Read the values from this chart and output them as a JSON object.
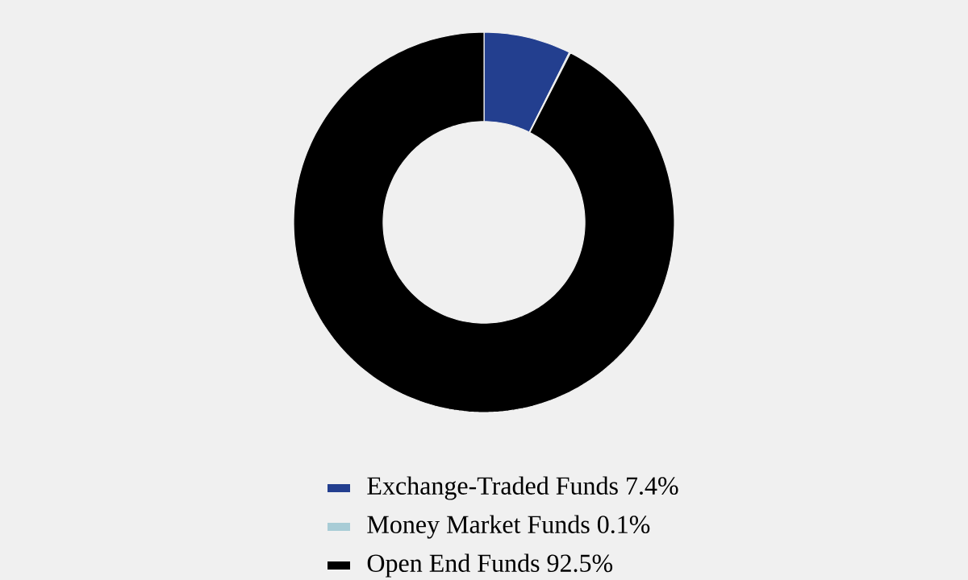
{
  "chart_data": {
    "type": "donut",
    "categories": [
      "Exchange-Traded Funds",
      "Money Market Funds",
      "Open End Funds"
    ],
    "values": [
      7.4,
      0.1,
      92.5
    ],
    "colors": [
      "#233f8f",
      "#a8ccd6",
      "#000000"
    ],
    "value_labels": [
      "7.4%",
      "0.1%",
      "92.5%"
    ],
    "legend": "bottom"
  }
}
